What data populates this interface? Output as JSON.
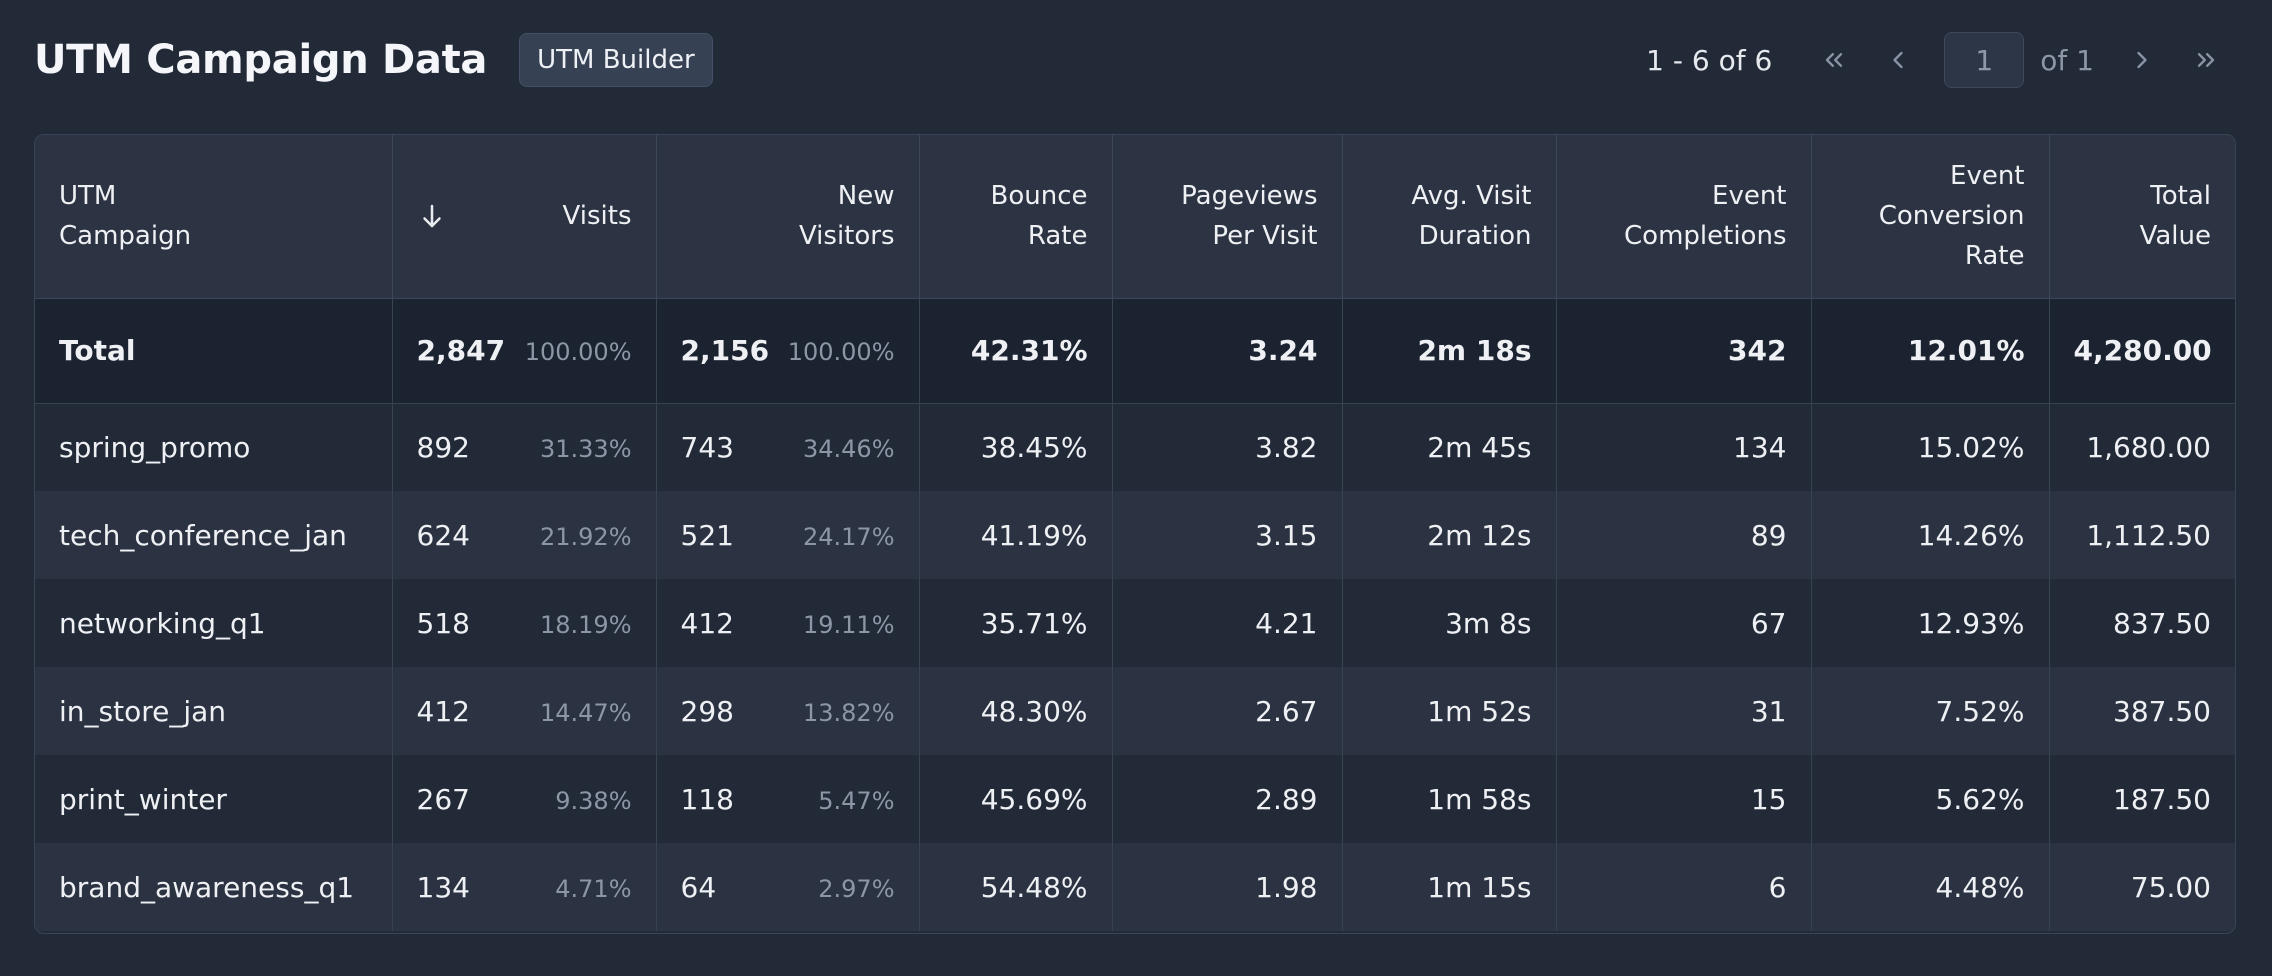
{
  "header": {
    "title": "UTM Campaign Data",
    "builder_label": "UTM Builder"
  },
  "pagination": {
    "range": "1 - 6 of 6",
    "page": "1",
    "of_total": "of 1"
  },
  "table": {
    "columns": {
      "campaign": [
        "UTM",
        "Campaign"
      ],
      "visits": "Visits",
      "new_visitors": [
        "New",
        "Visitors"
      ],
      "bounce": [
        "Bounce",
        "Rate"
      ],
      "pageviews": [
        "Pageviews",
        "Per Visit"
      ],
      "duration": [
        "Avg. Visit",
        "Duration"
      ],
      "completions": [
        "Event",
        "Completions"
      ],
      "conversion": [
        "Event",
        "Conversion",
        "Rate"
      ],
      "total_value": [
        "Total",
        "Value"
      ]
    },
    "total": {
      "name": "Total",
      "visits": "2,847",
      "visits_pct": "100.00%",
      "new_visitors": "2,156",
      "new_visitors_pct": "100.00%",
      "bounce": "42.31%",
      "pageviews": "3.24",
      "duration": "2m 18s",
      "completions": "342",
      "conversion": "12.01%",
      "total_value": "4,280.00"
    },
    "rows": [
      {
        "name": "spring_promo",
        "visits": "892",
        "visits_pct": "31.33%",
        "new_visitors": "743",
        "new_visitors_pct": "34.46%",
        "bounce": "38.45%",
        "pageviews": "3.82",
        "duration": "2m 45s",
        "completions": "134",
        "conversion": "15.02%",
        "total_value": "1,680.00"
      },
      {
        "name": "tech_conference_jan",
        "visits": "624",
        "visits_pct": "21.92%",
        "new_visitors": "521",
        "new_visitors_pct": "24.17%",
        "bounce": "41.19%",
        "pageviews": "3.15",
        "duration": "2m 12s",
        "completions": "89",
        "conversion": "14.26%",
        "total_value": "1,112.50"
      },
      {
        "name": "networking_q1",
        "visits": "518",
        "visits_pct": "18.19%",
        "new_visitors": "412",
        "new_visitors_pct": "19.11%",
        "bounce": "35.71%",
        "pageviews": "4.21",
        "duration": "3m 8s",
        "completions": "67",
        "conversion": "12.93%",
        "total_value": "837.50"
      },
      {
        "name": "in_store_jan",
        "visits": "412",
        "visits_pct": "14.47%",
        "new_visitors": "298",
        "new_visitors_pct": "13.82%",
        "bounce": "48.30%",
        "pageviews": "2.67",
        "duration": "1m 52s",
        "completions": "31",
        "conversion": "7.52%",
        "total_value": "387.50"
      },
      {
        "name": "print_winter",
        "visits": "267",
        "visits_pct": "9.38%",
        "new_visitors": "118",
        "new_visitors_pct": "5.47%",
        "bounce": "45.69%",
        "pageviews": "2.89",
        "duration": "1m 58s",
        "completions": "15",
        "conversion": "5.62%",
        "total_value": "187.50"
      },
      {
        "name": "brand_awareness_q1",
        "visits": "134",
        "visits_pct": "4.71%",
        "new_visitors": "64",
        "new_visitors_pct": "2.97%",
        "bounce": "54.48%",
        "pageviews": "1.98",
        "duration": "1m 15s",
        "completions": "6",
        "conversion": "4.48%",
        "total_value": "75.00"
      }
    ]
  },
  "icons": {
    "sort": "arrow-down-icon",
    "first": "double-chevron-left-icon",
    "prev": "chevron-left-icon",
    "next": "chevron-right-icon",
    "last": "double-chevron-right-icon"
  }
}
